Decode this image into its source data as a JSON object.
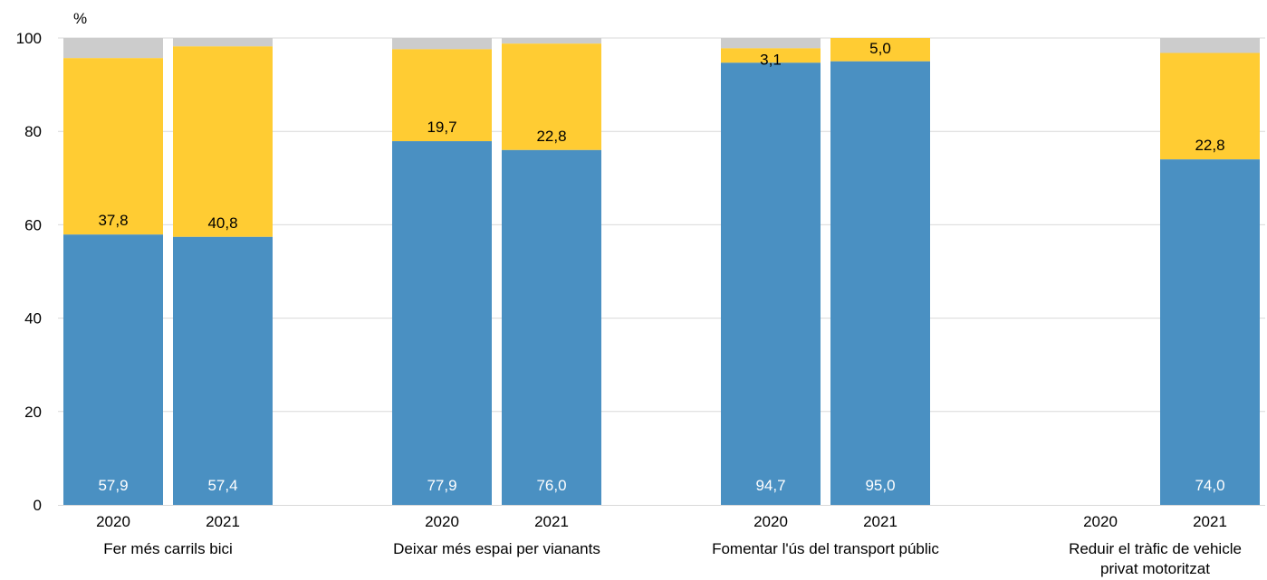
{
  "chart_data": {
    "type": "bar",
    "stacked": true,
    "y_unit_label": "%",
    "ylim": [
      0,
      100
    ],
    "yticks": [
      0,
      20,
      40,
      60,
      80,
      100
    ],
    "grid": true,
    "colors": {
      "blue": "#4a90c2",
      "yellow": "#ffcc33",
      "gray": "#cccccc",
      "grid": "#d9d9d9"
    },
    "groups": [
      {
        "label": "Fer més carrils bici",
        "bars": [
          {
            "year": "2020",
            "blue": 57.9,
            "yellow": 37.8,
            "blue_label": "57,9",
            "yellow_label": "37,8"
          },
          {
            "year": "2021",
            "blue": 57.4,
            "yellow": 40.8,
            "blue_label": "57,4",
            "yellow_label": "40,8"
          }
        ]
      },
      {
        "label": "Deixar més espai per vianants",
        "bars": [
          {
            "year": "2020",
            "blue": 77.9,
            "yellow": 19.7,
            "blue_label": "77,9",
            "yellow_label": "19,7"
          },
          {
            "year": "2021",
            "blue": 76.0,
            "yellow": 22.8,
            "blue_label": "76,0",
            "yellow_label": "22,8"
          }
        ]
      },
      {
        "label": "Fomentar l'ús del transport públic",
        "bars": [
          {
            "year": "2020",
            "blue": 94.7,
            "yellow": 3.1,
            "blue_label": "94,7",
            "yellow_label": "3,1"
          },
          {
            "year": "2021",
            "blue": 95.0,
            "yellow": 5.0,
            "blue_label": "95,0",
            "yellow_label": "5,0"
          }
        ]
      },
      {
        "label": "Reduir el tràfic de vehicle privat motoritzat",
        "label_lines": [
          "Reduir el tràfic de vehicle",
          "privat motoritzat"
        ],
        "bars": [
          {
            "year": "2020",
            "blue": null,
            "yellow": null,
            "blue_label": "",
            "yellow_label": ""
          },
          {
            "year": "2021",
            "blue": 74.0,
            "yellow": 22.8,
            "blue_label": "74,0",
            "yellow_label": "22,8"
          }
        ]
      }
    ]
  }
}
